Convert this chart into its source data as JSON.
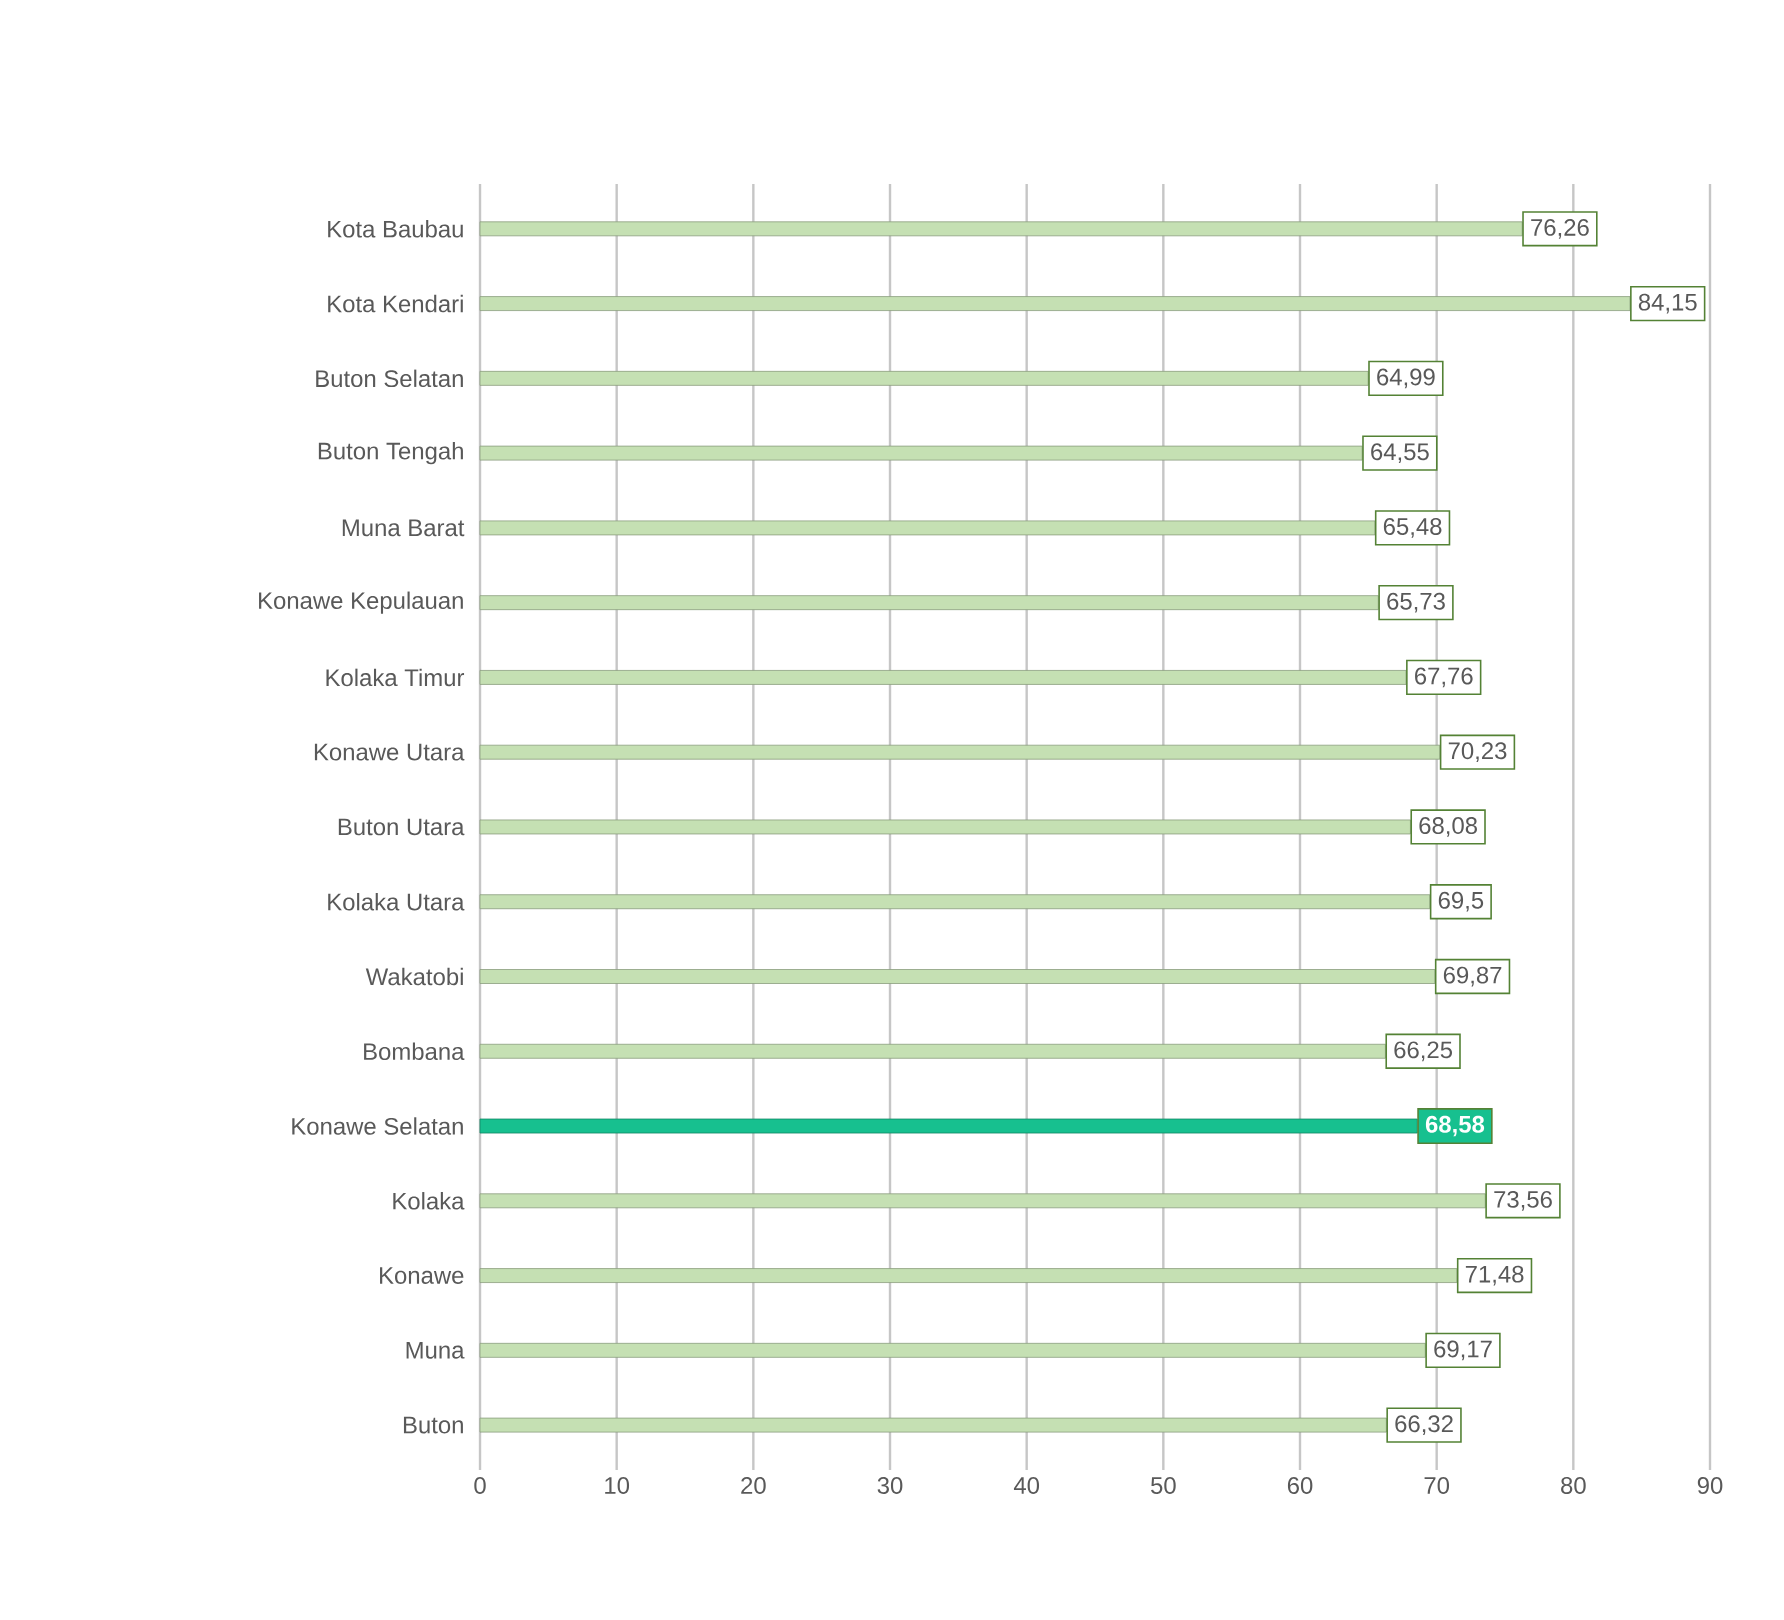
{
  "chart_data": {
    "type": "bar",
    "orientation": "horizontal",
    "categories": [
      "Kota Baubau",
      "Kota Kendari",
      "Buton Selatan",
      "Buton Tengah",
      "Muna Barat",
      "Konawe Kepulauan",
      "Kolaka Timur",
      "Konawe Utara",
      "Buton Utara",
      "Kolaka Utara",
      "Wakatobi",
      "Bombana",
      "Konawe Selatan",
      "Kolaka",
      "Konawe",
      "Muna",
      "Buton"
    ],
    "values": [
      76.26,
      84.15,
      64.99,
      64.55,
      65.48,
      65.73,
      67.76,
      70.23,
      68.08,
      69.5,
      69.87,
      66.25,
      68.58,
      73.56,
      71.48,
      69.17,
      66.32
    ],
    "value_labels": [
      "76,26",
      "84,15",
      "64,99",
      "64,55",
      "65,48",
      "65,73",
      "67,76",
      "70,23",
      "68,08",
      "69,5",
      "69,87",
      "66,25",
      "68,58",
      "73,56",
      "71,48",
      "69,17",
      "66,32"
    ],
    "colors": [
      "#c5e0b3",
      "#c5e0b3",
      "#c5e0b3",
      "#c5e0b3",
      "#c5e0b3",
      "#c5e0b3",
      "#c5e0b3",
      "#c5e0b3",
      "#c5e0b3",
      "#c5e0b3",
      "#c5e0b3",
      "#c5e0b3",
      "#17c08f",
      "#c5e0b3",
      "#c5e0b3",
      "#c5e0b3",
      "#c5e0b3"
    ],
    "xlim": [
      0,
      90
    ],
    "xticks": [
      0,
      10,
      20,
      30,
      40,
      50,
      60,
      70,
      80,
      90
    ],
    "grid": "x"
  }
}
